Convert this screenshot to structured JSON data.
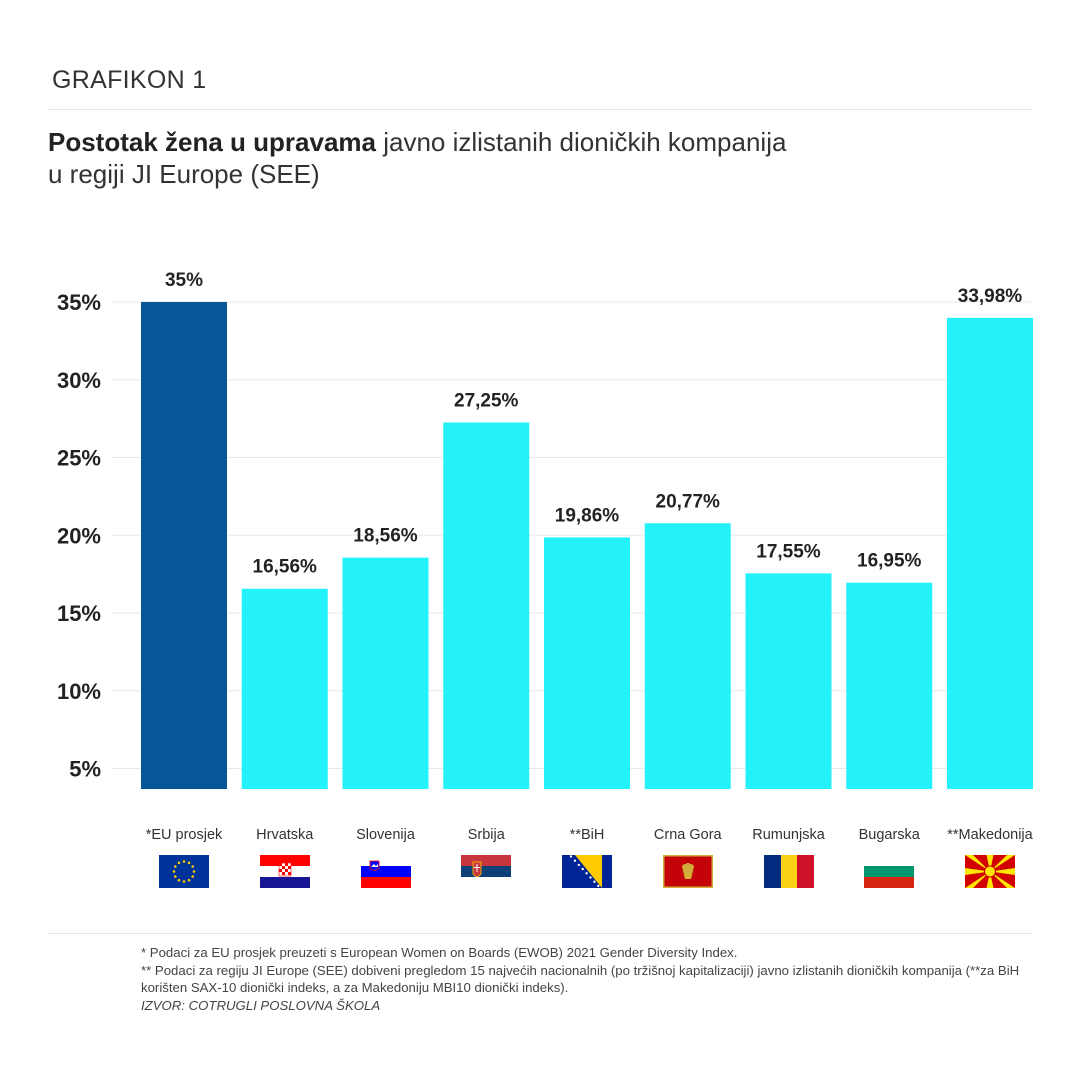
{
  "header": {
    "label": "GRAFIKON 1",
    "title_bold": "Postotak žena u upravama",
    "title_rest": " javno izlistanih dioničkih kompanija u regiji JI Europe (SEE)"
  },
  "chart_data": {
    "type": "bar",
    "categories": [
      "*EU prosjek",
      "Hrvatska",
      "Slovenija",
      "Srbija",
      "**BiH",
      "Crna Gora",
      "Rumunjska",
      "Bugarska",
      "**Makedonija"
    ],
    "values": [
      35,
      16.56,
      18.56,
      27.25,
      19.86,
      20.77,
      17.55,
      16.95,
      33.98
    ],
    "value_labels": [
      "35%",
      "16,56%",
      "18,56%",
      "27,25%",
      "19,86%",
      "20,77%",
      "17,55%",
      "16,95%",
      "33,98%"
    ],
    "ytick_values": [
      5,
      10,
      15,
      20,
      25,
      30,
      35
    ],
    "ytick_labels": [
      "5%",
      "10%",
      "15%",
      "20%",
      "25%",
      "30%",
      "35%"
    ],
    "grid": true,
    "colors": {
      "highlight": "#05579a",
      "bar": "#24f2fa",
      "grid": "#e8e8e8"
    },
    "flags": [
      "eu-flag-icon",
      "croatia-flag-icon",
      "slovenia-flag-icon",
      "serbia-flag-icon",
      "bih-flag-icon",
      "montenegro-flag-icon",
      "romania-flag-icon",
      "bulgaria-flag-icon",
      "macedonia-flag-icon"
    ]
  },
  "notes": {
    "line1": "* Podaci za EU prosjek preuzeti s European Women on Boards (EWOB) 2021 Gender Diversity Index.",
    "line2": "** Podaci za regiju JI Europe (SEE) dobiveni pregledom 15 najvećih nacionalnih (po tržišnoj kapitalizaciji) javno izlistanih dioničkih kompanija (**za BiH korišten SAX-10 dionički indeks,  a za Makedoniju MBI10 dionički indeks).",
    "source": "IZVOR: COTRUGLI POSLOVNA ŠKOLA"
  }
}
